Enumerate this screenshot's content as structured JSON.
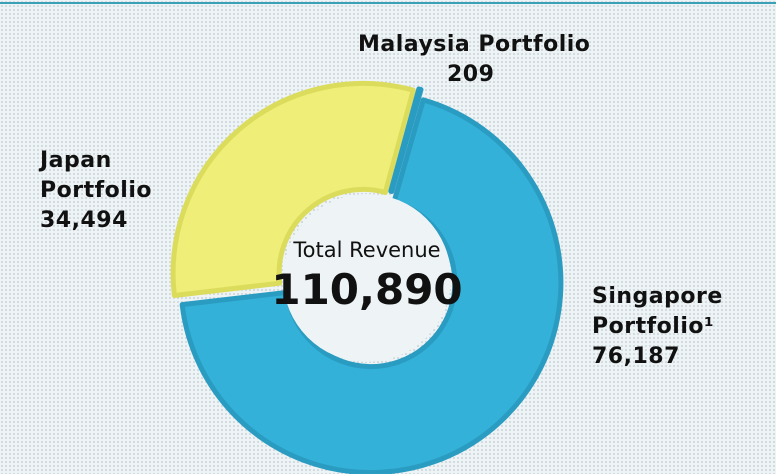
{
  "chart_data": {
    "type": "donut",
    "categories": [
      "Singapore Portfolio¹",
      "Japan Portfolio",
      "Malaysia Portfolio"
    ],
    "values": [
      76187,
      34494,
      209
    ],
    "value_labels": [
      "76,187",
      "34,494",
      "209"
    ],
    "colors": [
      "#33b1d8",
      "#eeee78",
      "#2a7fa2"
    ],
    "center_title": "Total Revenue",
    "total": {
      "value": 110890,
      "label": "110,890"
    }
  }
}
